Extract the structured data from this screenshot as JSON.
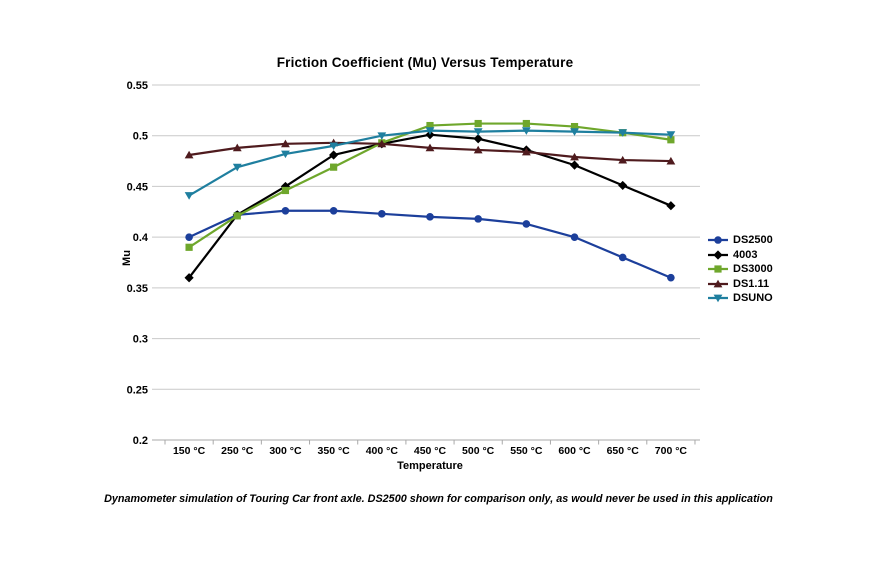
{
  "caption": "Dynamometer simulation of Touring Car front axle. DS2500 shown for comparison only, as would never be used in this application",
  "colors": {
    "gridline": "#c9c9c9",
    "axis_line": "#a9a9a9",
    "text": "#000000"
  },
  "chart_data": {
    "type": "line",
    "title": "Friction Coefficient (Mu) Versus Temperature",
    "xlabel": "Temperature",
    "ylabel": "Mu",
    "ylim": [
      0.2,
      0.55
    ],
    "ytick_step": 0.05,
    "ytick_labels": [
      "0.55",
      "0.5",
      "0.45",
      "0.4",
      "0.35",
      "0.3",
      "0.25",
      "0.2"
    ],
    "grid": true,
    "legend_position": "right",
    "categories": [
      "150 °C",
      "250 °C",
      "300 °C",
      "350 °C",
      "400 °C",
      "450 °C",
      "500 °C",
      "550 °C",
      "600 °C",
      "650 °C",
      "700 °C"
    ],
    "series": [
      {
        "name": "DS2500",
        "color": "#1c3f9b",
        "marker": "circle",
        "values": [
          0.4,
          0.422,
          0.426,
          0.426,
          0.423,
          0.42,
          0.418,
          0.413,
          0.4,
          0.38,
          0.36
        ]
      },
      {
        "name": "4003",
        "color": "#000000",
        "marker": "diamond",
        "values": [
          0.36,
          0.422,
          0.45,
          0.481,
          0.492,
          0.501,
          0.497,
          0.486,
          0.471,
          0.451,
          0.431
        ]
      },
      {
        "name": "DS3000",
        "color": "#6fa72c",
        "marker": "square",
        "values": [
          0.39,
          0.421,
          0.446,
          0.469,
          0.493,
          0.51,
          0.512,
          0.512,
          0.509,
          0.503,
          0.496
        ]
      },
      {
        "name": "DS1.11",
        "color": "#4f1b1e",
        "marker": "triangle-up",
        "values": [
          0.481,
          0.488,
          0.492,
          0.493,
          0.492,
          0.488,
          0.486,
          0.484,
          0.479,
          0.476,
          0.475
        ]
      },
      {
        "name": "DSUNO",
        "color": "#1f7f9f",
        "marker": "triangle-down",
        "values": [
          0.441,
          0.469,
          0.482,
          0.49,
          0.5,
          0.505,
          0.504,
          0.505,
          0.504,
          0.503,
          0.501
        ]
      }
    ]
  }
}
